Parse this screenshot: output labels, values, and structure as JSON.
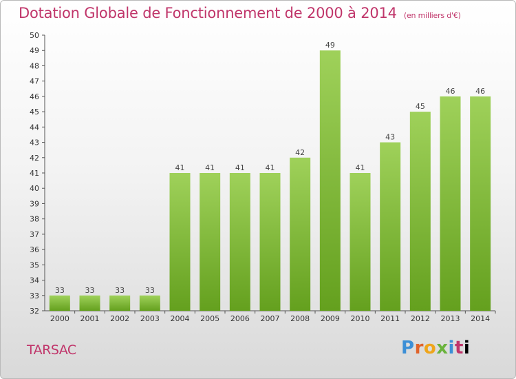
{
  "header": {
    "title": "Dotation Globale de Fonctionnement de 2000 à 2014",
    "subtitle": "(en milliers d'€)"
  },
  "footer": {
    "place": "TARSAC",
    "brand": "Proxiti"
  },
  "colors": {
    "bar_top": "#9fd15a",
    "bar_bottom": "#64a01e",
    "title": "#c0356a"
  },
  "chart_data": {
    "type": "bar",
    "title": "Dotation Globale de Fonctionnement de 2000 à 2014",
    "subtitle": "(en milliers d'€)",
    "categories": [
      "2000",
      "2001",
      "2002",
      "2003",
      "2004",
      "2005",
      "2006",
      "2007",
      "2008",
      "2009",
      "2010",
      "2011",
      "2012",
      "2013",
      "2014"
    ],
    "values": [
      33,
      33,
      33,
      33,
      41,
      41,
      41,
      41,
      42,
      49,
      41,
      43,
      45,
      46,
      46
    ],
    "ylim": [
      32,
      50
    ],
    "ytick_step": 1,
    "grid": false,
    "data_labels": true
  }
}
